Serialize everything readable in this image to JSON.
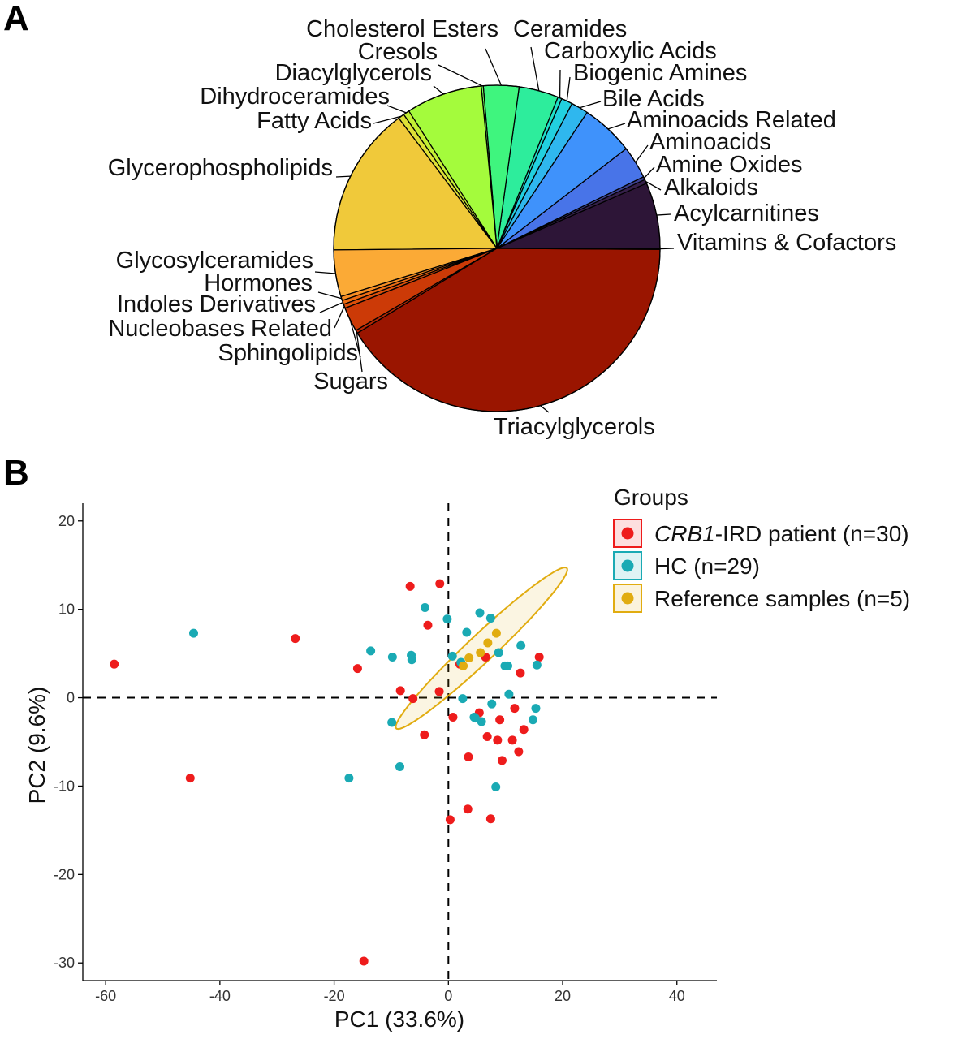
{
  "panels": {
    "a_letter": "A",
    "b_letter": "B"
  },
  "chart_data": [
    {
      "type": "pie",
      "slices": [
        {
          "label": "Acylcarnitines",
          "value": 6.5,
          "color": "#2d1537"
        },
        {
          "label": "Alkaloids",
          "value": 0.4,
          "color": "#36204a"
        },
        {
          "label": "Amine Oxides",
          "value": 0.3,
          "color": "#3c3f8f"
        },
        {
          "label": "Aminoacids",
          "value": 3.2,
          "color": "#4874e8"
        },
        {
          "label": "Aminoacids Related",
          "value": 5.2,
          "color": "#3f92fb"
        },
        {
          "label": "Bile Acids",
          "value": 1.7,
          "color": "#2fb7ee"
        },
        {
          "label": "Biogenic Amines",
          "value": 1.1,
          "color": "#22d0df"
        },
        {
          "label": "Carboxylic Acids",
          "value": 0.4,
          "color": "#1ee0c8"
        },
        {
          "label": "Ceramides",
          "value": 3.9,
          "color": "#2ded9c"
        },
        {
          "label": "Cholesterol Esters",
          "value": 3.5,
          "color": "#3ff57e"
        },
        {
          "label": "Cresols",
          "value": 0.2,
          "color": "#72fc5a"
        },
        {
          "label": "Diacylglycerols",
          "value": 7.5,
          "color": "#a4fb3c"
        },
        {
          "label": "Dihydroceramides",
          "value": 0.6,
          "color": "#c4ef34"
        },
        {
          "label": "Fatty Acids",
          "value": 0.6,
          "color": "#dde036"
        },
        {
          "label": "Glycerophospholipids",
          "value": 14.8,
          "color": "#f0c93a"
        },
        {
          "label": "Glycosylceramides",
          "value": 4.6,
          "color": "#fbaa36"
        },
        {
          "label": "Hormones",
          "value": 0.4,
          "color": "#f88d23"
        },
        {
          "label": "Indoles Derivatives",
          "value": 0.4,
          "color": "#ed6b13"
        },
        {
          "label": "Nucleobases Related",
          "value": 0.4,
          "color": "#dc4f0a"
        },
        {
          "label": "Sphingolipids",
          "value": 2.4,
          "color": "#cc3a07"
        },
        {
          "label": "Sugars",
          "value": 0.3,
          "color": "#b82703"
        },
        {
          "label": "Triacylglycerols",
          "value": 41.0,
          "color": "#9a1500"
        },
        {
          "label": "Vitamins & Cofactors",
          "value": 0.1,
          "color": "#7a0403"
        }
      ]
    },
    {
      "type": "scatter",
      "xlabel": "PC1 (33.6%)",
      "ylabel": "PC2 (9.6%)",
      "xlim": [
        -64,
        47
      ],
      "ylim": [
        -32,
        22
      ],
      "xticks": [
        -60,
        -40,
        -20,
        0,
        20,
        40
      ],
      "yticks": [
        -30,
        -20,
        -10,
        0,
        10,
        20
      ],
      "grid": false,
      "reference_lines": {
        "x": 0,
        "y": 0,
        "style": "dashed"
      },
      "legend": {
        "title": "Groups",
        "position": "top-right",
        "entries": [
          {
            "italic": "CRB1",
            "text": "-IRD patient (n=30)",
            "color": "#ee1c1c"
          },
          {
            "italic": "",
            "text": "HC (n=29)",
            "color": "#1aaab4"
          },
          {
            "italic": "",
            "text": "Reference samples (n=5)",
            "color": "#e1ac10"
          }
        ]
      },
      "ellipse": {
        "series": "Reference samples (n=5)",
        "center": [
          5.8,
          5.6
        ],
        "semi_major": 17.5,
        "semi_minor": 1.8,
        "angle_deg": 31,
        "color": "#e1ac10"
      },
      "series": [
        {
          "name": "CRB1-IRD patient (n=30)",
          "color": "#ee1c1c",
          "points": [
            [
              -58.5,
              3.8
            ],
            [
              -45.2,
              -9.1
            ],
            [
              -26.8,
              6.7
            ],
            [
              -15.9,
              3.3
            ],
            [
              -14.8,
              -29.8
            ],
            [
              -8.4,
              0.8
            ],
            [
              -6.7,
              12.6
            ],
            [
              -6.2,
              -0.1
            ],
            [
              -4.2,
              -4.2
            ],
            [
              -3.6,
              8.2
            ],
            [
              -1.5,
              12.9
            ],
            [
              -1.6,
              0.7
            ],
            [
              0.8,
              -2.2
            ],
            [
              0.3,
              -13.8
            ],
            [
              3.5,
              -6.7
            ],
            [
              3.4,
              -12.6
            ],
            [
              5.4,
              -1.7
            ],
            [
              6.5,
              4.6
            ],
            [
              6.8,
              -4.4
            ],
            [
              7.4,
              -13.7
            ],
            [
              8.6,
              -4.8
            ],
            [
              9.0,
              -2.5
            ],
            [
              9.4,
              -7.1
            ],
            [
              11.2,
              -4.8
            ],
            [
              11.6,
              -1.2
            ],
            [
              12.3,
              -6.1
            ],
            [
              12.6,
              2.8
            ],
            [
              13.2,
              -3.6
            ],
            [
              15.9,
              4.6
            ],
            [
              2.0,
              3.8
            ]
          ]
        },
        {
          "name": "HC (n=29)",
          "color": "#1aaab4",
          "points": [
            [
              -44.6,
              7.3
            ],
            [
              -17.4,
              -9.1
            ],
            [
              -13.6,
              5.3
            ],
            [
              -9.8,
              4.6
            ],
            [
              -9.9,
              -2.8
            ],
            [
              -8.5,
              -7.8
            ],
            [
              -6.5,
              4.8
            ],
            [
              -6.4,
              4.3
            ],
            [
              -4.1,
              10.2
            ],
            [
              -0.2,
              8.9
            ],
            [
              0.7,
              4.7
            ],
            [
              2.5,
              -0.1
            ],
            [
              3.2,
              7.4
            ],
            [
              4.7,
              -2.3
            ],
            [
              5.5,
              9.6
            ],
            [
              5.8,
              -2.7
            ],
            [
              7.4,
              9.0
            ],
            [
              7.6,
              -0.7
            ],
            [
              8.3,
              -10.1
            ],
            [
              8.8,
              5.1
            ],
            [
              9.9,
              3.6
            ],
            [
              10.4,
              3.6
            ],
            [
              10.6,
              0.4
            ],
            [
              12.7,
              5.9
            ],
            [
              14.8,
              -2.5
            ],
            [
              15.3,
              -1.2
            ],
            [
              15.5,
              3.7
            ],
            [
              2.2,
              4.0
            ],
            [
              4.5,
              -2.2
            ]
          ]
        },
        {
          "name": "Reference samples (n=5)",
          "color": "#e1ac10",
          "points": [
            [
              3.6,
              4.5
            ],
            [
              5.6,
              5.1
            ],
            [
              6.9,
              6.2
            ],
            [
              8.4,
              7.3
            ],
            [
              2.6,
              3.6
            ]
          ]
        }
      ]
    }
  ]
}
